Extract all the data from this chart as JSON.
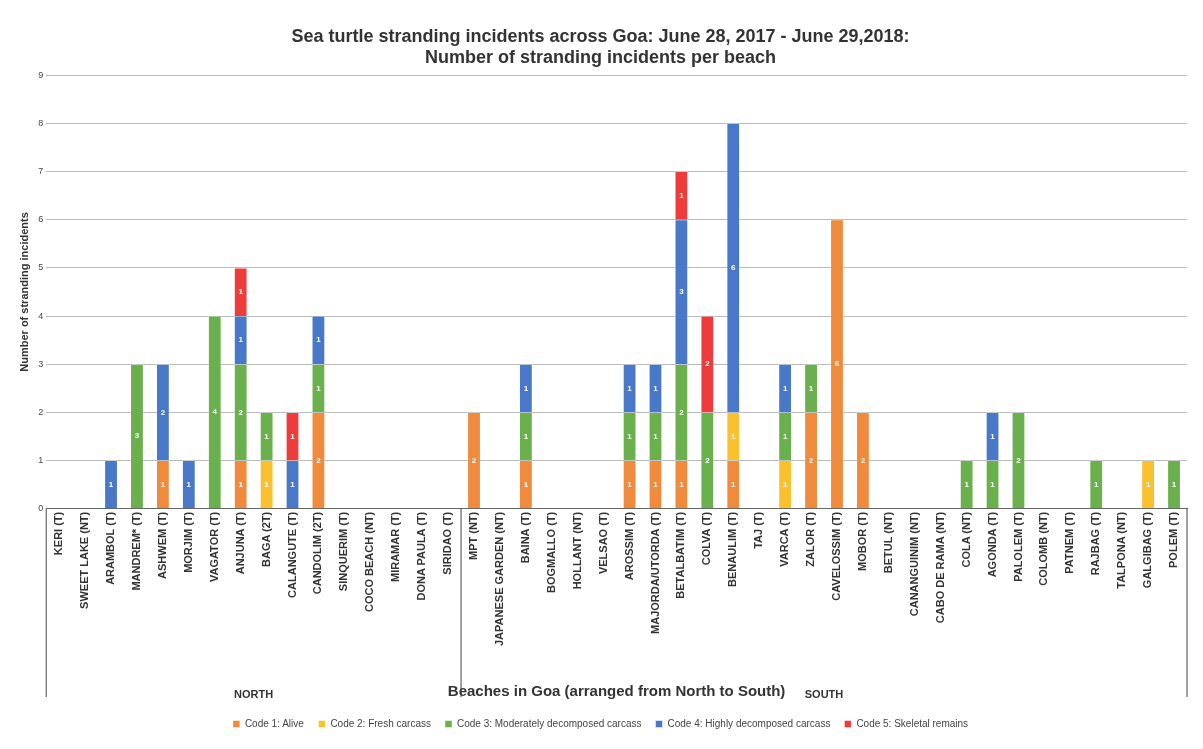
{
  "chart_data": {
    "type": "bar",
    "stacked": true,
    "title": "Sea turtle stranding incidents across Goa: June 28, 2017 - June 29,2018:\nNumber of stranding incidents per beach",
    "xlabel": "Beaches in Goa (arranged from North to South)",
    "ylabel": "Number of stranding incidents",
    "categories": [
      "KERI (T)",
      "SWEET LAKE (NT)",
      "ARAMBOL (T)",
      "MANDREM* (T)",
      "ASHWEM (T)",
      "MORJIM (T)",
      "VAGATOR (T)",
      "ANJUNA (T)",
      "BAGA (2T)",
      "CALANGUTE (T)",
      "CANDOLIM (2T)",
      "SINQUERIM (T)",
      "COCO BEACH (NT)",
      "MIRAMAR (T)",
      "DONA PAULA (T)",
      "SIRIDAO (T)",
      "MPT (NT)",
      "JAPANESE GARDEN (NT)",
      "BAINA (T)",
      "BOGMALLO (T)",
      "HOLLANT (NT)",
      "VELSAO (T)",
      "AROSSIM (T)",
      "MAJORDA/UTORDA (T)",
      "BETALBATIM (T)",
      "COLVA (T)",
      "BENAULIM (T)",
      "TAJ (T)",
      "VARCA (T)",
      "ZALOR (T)",
      "CAVELOSSIM (T)",
      "MOBOR (T)",
      "BETUL (NT)",
      "CANANGUINIM (NT)",
      "CABO DE RAMA (NT)",
      "COLA (NT)",
      "AGONDA (T)",
      "PALOLEM (T)",
      "COLOMB (NT)",
      "PATNEM (T)",
      "RAJBAG (T)",
      "TALPONA (NT)",
      "GALGIBAG (T)",
      "POLEM (T)"
    ],
    "series": [
      {
        "name": "Code 1: Alive",
        "color": "#f08a3c",
        "values": [
          null,
          null,
          null,
          null,
          1,
          null,
          null,
          1,
          null,
          null,
          2,
          null,
          null,
          null,
          null,
          null,
          2,
          null,
          1,
          null,
          null,
          null,
          1,
          1,
          1,
          null,
          1,
          null,
          null,
          2,
          6,
          2,
          null,
          null,
          null,
          null,
          null,
          null,
          null,
          null,
          null,
          null,
          null,
          null
        ]
      },
      {
        "name": "Code 2: Fresh carcass",
        "color": "#fbc02d",
        "values": [
          null,
          null,
          null,
          null,
          null,
          null,
          null,
          null,
          1,
          null,
          null,
          null,
          null,
          null,
          null,
          null,
          null,
          null,
          null,
          null,
          null,
          null,
          null,
          null,
          null,
          null,
          1,
          null,
          1,
          null,
          null,
          null,
          null,
          null,
          null,
          null,
          null,
          null,
          null,
          null,
          null,
          null,
          1,
          null
        ]
      },
      {
        "name": "Code 3: Moderately decomposed carcass",
        "color": "#6ab04c",
        "values": [
          null,
          null,
          null,
          3,
          null,
          null,
          4,
          2,
          1,
          null,
          1,
          null,
          null,
          null,
          null,
          null,
          null,
          null,
          1,
          null,
          null,
          null,
          1,
          1,
          2,
          2,
          null,
          null,
          1,
          1,
          null,
          null,
          null,
          null,
          null,
          1,
          1,
          2,
          null,
          null,
          1,
          null,
          null,
          1
        ]
      },
      {
        "name": "Code 4: Highly decomposed carcass",
        "color": "#4a78c8",
        "values": [
          null,
          null,
          1,
          null,
          2,
          1,
          null,
          1,
          null,
          1,
          1,
          null,
          null,
          null,
          null,
          null,
          null,
          null,
          1,
          null,
          null,
          null,
          1,
          1,
          3,
          null,
          6,
          null,
          1,
          null,
          null,
          null,
          null,
          null,
          null,
          null,
          1,
          null,
          null,
          null,
          null,
          null,
          null,
          null
        ]
      },
      {
        "name": "Code 5: Skeletal remains",
        "color": "#ee3b3b",
        "values": [
          null,
          null,
          null,
          null,
          null,
          null,
          null,
          1,
          null,
          1,
          null,
          null,
          null,
          null,
          null,
          null,
          null,
          null,
          null,
          null,
          null,
          null,
          null,
          null,
          1,
          2,
          null,
          null,
          null,
          null,
          null,
          null,
          null,
          null,
          null,
          null,
          null,
          null,
          null,
          null,
          null,
          null,
          null,
          null
        ]
      }
    ],
    "ylim": [
      0,
      9
    ],
    "yticks": [
      0,
      1,
      2,
      3,
      4,
      5,
      6,
      7,
      8,
      9
    ],
    "grid": "y",
    "legend": "bottom",
    "data_labels": true,
    "annotations": [
      "NORTH",
      "SOUTH"
    ]
  }
}
